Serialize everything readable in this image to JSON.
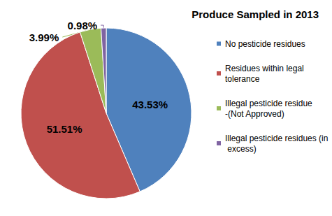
{
  "chart_data": {
    "type": "pie",
    "title": "Produce Sampled in 2013",
    "categories": [
      "No pesticide residues",
      "Residues within legal tolerance",
      "Illegal pesticide residue -(Not Approved)",
      "Illegal pesticide residues (in excess)"
    ],
    "values": [
      43.53,
      51.51,
      3.99,
      0.98
    ],
    "value_labels": [
      "43.53%",
      "51.51%",
      "3.99%",
      "0.98%"
    ],
    "colors": [
      "#4F81BD",
      "#C0504D",
      "#9BBB59",
      "#8064A2"
    ],
    "data_labels": true,
    "legend": "right"
  }
}
